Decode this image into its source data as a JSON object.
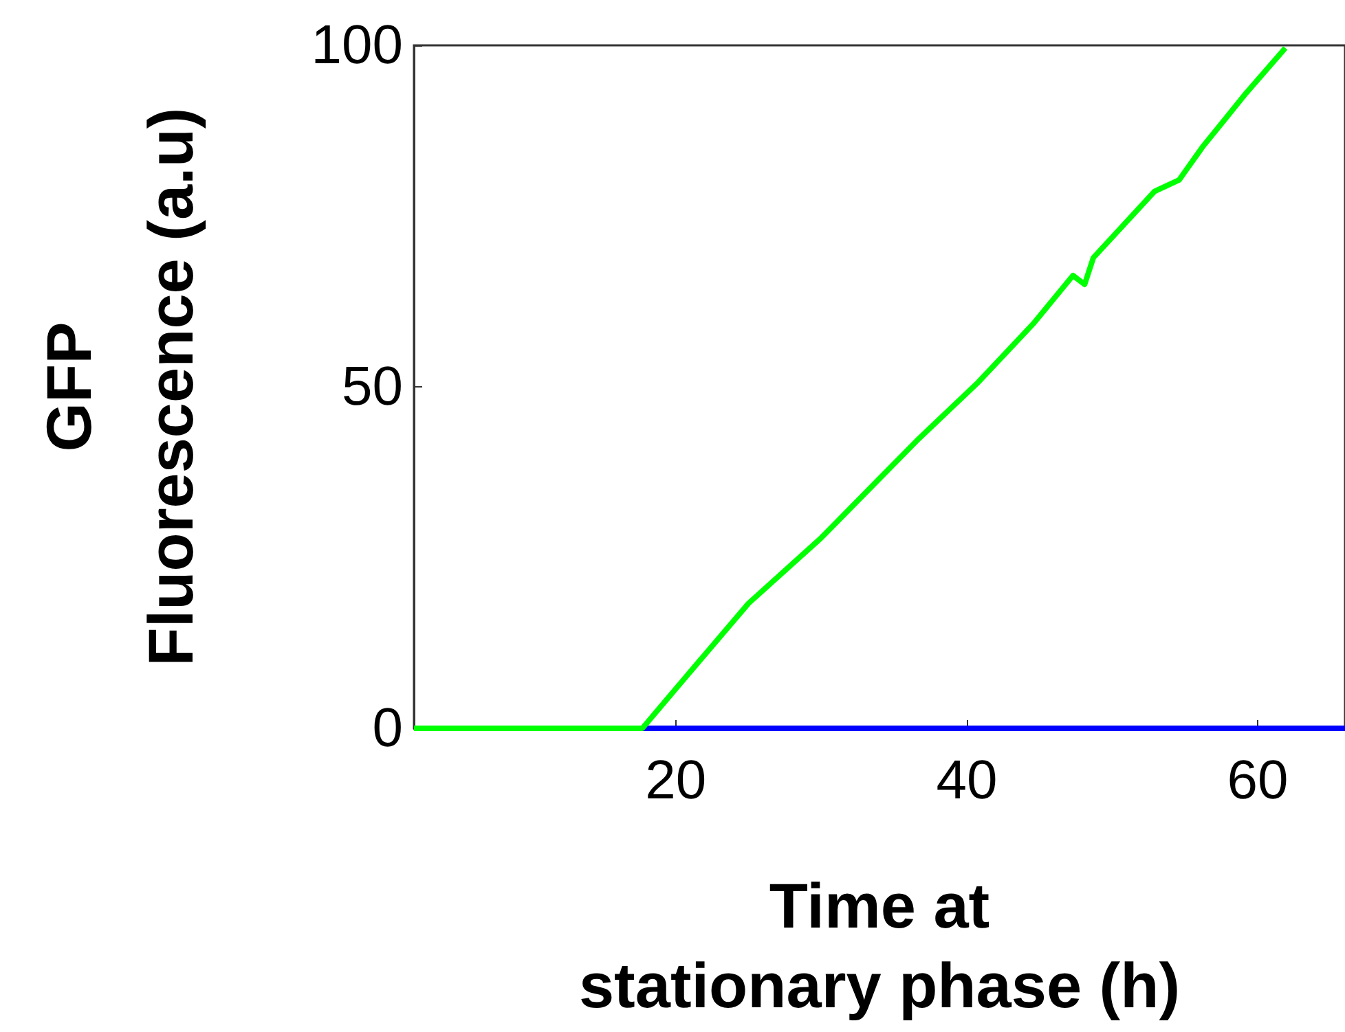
{
  "chart_data": {
    "type": "line",
    "xlabel": "Time at\nstationary phase (h)",
    "ylabel": "GFP\nFluorescence (a.u)",
    "xlim": [
      2,
      66
    ],
    "ylim": [
      0,
      100
    ],
    "xticks": [
      20,
      40,
      60
    ],
    "yticks": [
      0,
      50,
      100
    ],
    "marker": "none",
    "series": [
      {
        "color": "#0000ff",
        "x": [
          2,
          66
        ],
        "values": [
          0,
          0
        ]
      },
      {
        "color": "#00ff00",
        "x": [
          2,
          6,
          10,
          14,
          17.7,
          20.8,
          25,
          30,
          36.7,
          40.8,
          44.6,
          47.3,
          48.1,
          48.7,
          52.9,
          54.6,
          56.2,
          59.2,
          61.9
        ],
        "values": [
          0,
          0,
          0,
          0,
          0,
          7.8,
          18.3,
          27.9,
          42.4,
          50.7,
          59.3,
          66.3,
          65,
          68.9,
          78.6,
          80.3,
          85.1,
          93,
          99.6
        ]
      }
    ]
  }
}
